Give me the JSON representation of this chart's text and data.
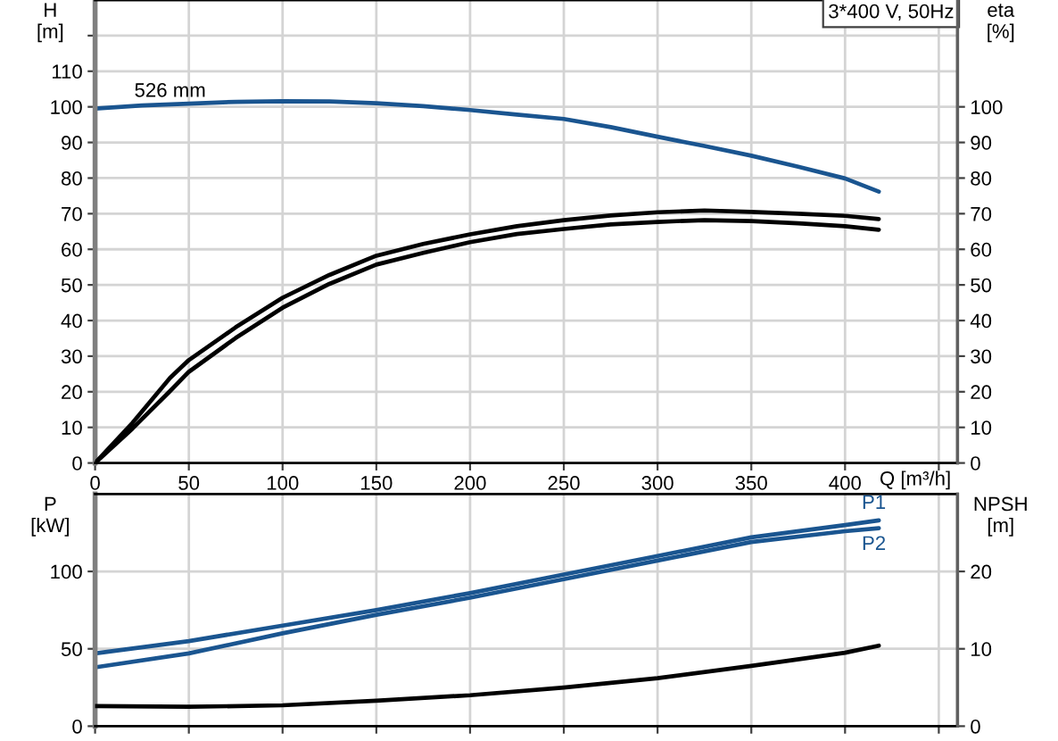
{
  "chart_data": [
    {
      "type": "line",
      "title": "3*400 V, 50Hz",
      "xlabel": "Q [m³/h]",
      "ylabel": "H\n[m]",
      "y2label": "eta\n[%]",
      "xlim": [
        0,
        460
      ],
      "xticks": [
        0,
        50,
        100,
        150,
        200,
        250,
        300,
        350,
        400,
        {
          "value": 450,
          "label": null
        }
      ],
      "ylim": [
        0,
        130
      ],
      "yticks": [
        0,
        10,
        20,
        30,
        40,
        50,
        60,
        70,
        80,
        90,
        100,
        110,
        {
          "value": 120,
          "label": null
        }
      ],
      "y2lim": [
        0,
        130
      ],
      "y2ticks": [
        0,
        10,
        20,
        30,
        40,
        50,
        60,
        70,
        80,
        90,
        100
      ],
      "grid": true,
      "annotations": [
        {
          "text": "526 mm",
          "x": 40,
          "y": 100.6
        }
      ],
      "series": [
        {
          "color": "#1a5590",
          "axis": "y",
          "x": [
            0,
            25,
            50,
            75,
            100,
            125,
            150,
            175,
            200,
            225,
            250,
            275,
            300,
            325,
            350,
            375,
            400,
            418
          ],
          "values": [
            99.5,
            100.4,
            100.9,
            101.4,
            101.6,
            101.5,
            101.0,
            100.2,
            99.1,
            97.8,
            96.6,
            94.3,
            91.6,
            89.0,
            86.3,
            83.2,
            79.9,
            76.2
          ]
        },
        {
          "color": "#000000",
          "axis": "y2",
          "x": [
            0,
            20,
            40,
            50,
            75,
            100,
            125,
            150,
            175,
            200,
            225,
            250,
            275,
            300,
            325,
            350,
            375,
            400,
            418
          ],
          "values": [
            0,
            11.3,
            23.9,
            28.9,
            38.1,
            46.4,
            52.8,
            58.2,
            61.5,
            64.2,
            66.5,
            68.2,
            69.5,
            70.4,
            70.9,
            70.5,
            70.0,
            69.4,
            68.5
          ]
        },
        {
          "color": "#000000",
          "axis": "y2",
          "x": [
            0,
            20,
            40,
            50,
            75,
            100,
            125,
            150,
            175,
            200,
            225,
            250,
            275,
            300,
            325,
            350,
            375,
            400,
            418
          ],
          "values": [
            0,
            9.7,
            20.2,
            25.6,
            35.1,
            43.6,
            50.3,
            55.7,
            59.0,
            62.0,
            64.3,
            65.7,
            67.0,
            67.7,
            68.2,
            67.9,
            67.3,
            66.5,
            65.5
          ]
        }
      ]
    },
    {
      "type": "line",
      "ylabel": "P\n[kW]",
      "y2label": "NPSH\n[m]",
      "xlim": [
        0,
        460
      ],
      "xticks": [
        0,
        50,
        100,
        150,
        200,
        250,
        300,
        350,
        400,
        {
          "value": 450,
          "label": null
        }
      ],
      "ylim": [
        0,
        150
      ],
      "yticks": [
        0,
        50,
        100
      ],
      "y2lim": [
        0,
        30
      ],
      "y2ticks": [
        0,
        10,
        20
      ],
      "grid": true,
      "tick_labels": "y",
      "series": [
        {
          "name": "P1",
          "color": "#1a5590",
          "axis": "y",
          "x": [
            0,
            50,
            100,
            150,
            200,
            250,
            300,
            350,
            400,
            418
          ],
          "values": [
            47,
            55,
            65,
            75,
            86,
            98,
            110,
            122,
            130,
            133
          ]
        },
        {
          "name": "P2",
          "color": "#1a5590",
          "axis": "y",
          "x": [
            0,
            50,
            100,
            150,
            200,
            250,
            300,
            350,
            400,
            418
          ],
          "values": [
            38,
            47,
            60,
            72,
            83,
            95,
            107,
            119,
            126,
            128
          ]
        },
        {
          "color": "#000000",
          "axis": "y2",
          "x": [
            0,
            50,
            100,
            150,
            200,
            250,
            300,
            350,
            400,
            418
          ],
          "values": [
            2.6,
            2.5,
            2.7,
            3.3,
            4.0,
            5.0,
            6.2,
            7.8,
            9.5,
            10.4
          ]
        }
      ]
    }
  ]
}
